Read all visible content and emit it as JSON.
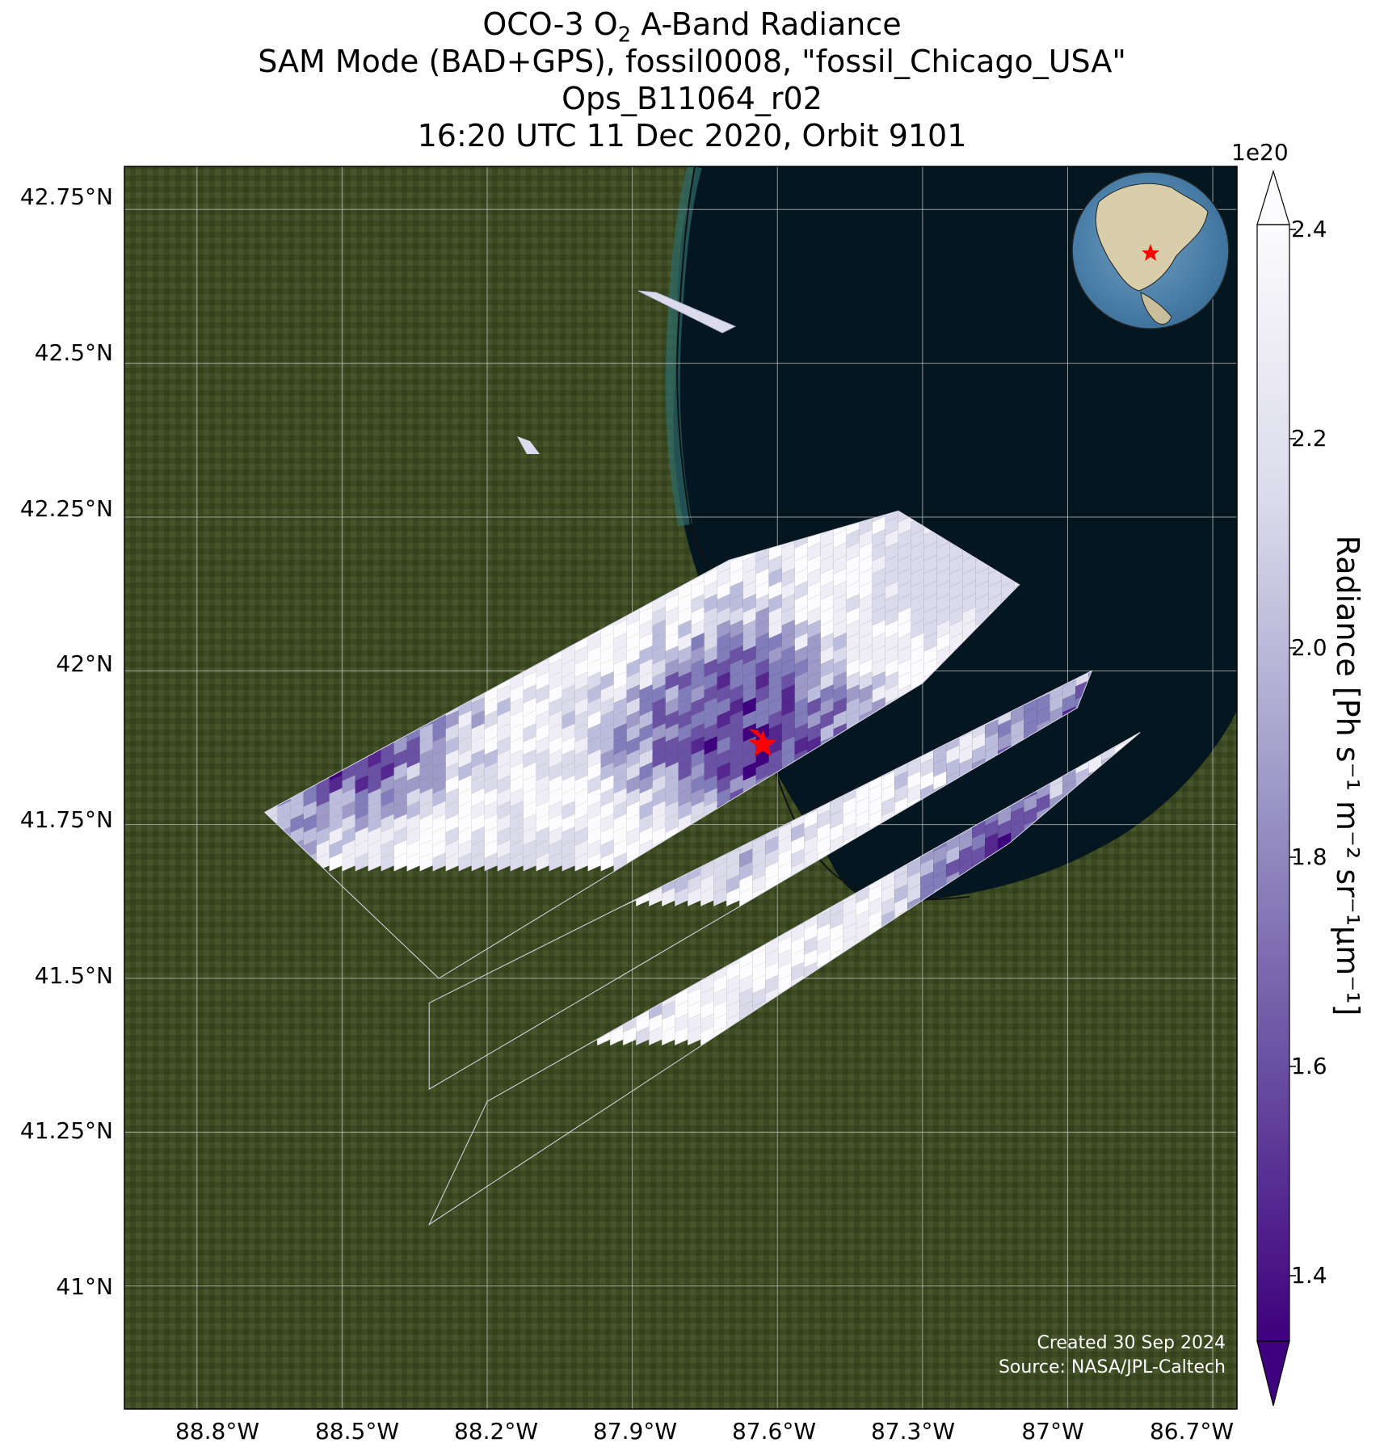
{
  "title": {
    "line1_prefix": "OCO-3 O",
    "line1_sub": "2",
    "line1_suffix": " A-Band Radiance",
    "line2": "SAM Mode (BAD+GPS), fossil0008, \"fossil_Chicago_USA\"",
    "line3": "Ops_B11064_r02",
    "line4": "16:20 UTC 11 Dec 2020, Orbit 9101"
  },
  "axes": {
    "lat_ticks": [
      "42.75°N",
      "42.5°N",
      "42.25°N",
      "42°N",
      "41.75°N",
      "41.5°N",
      "41.25°N",
      "41°N"
    ],
    "lon_ticks": [
      "88.8°W",
      "88.5°W",
      "88.2°W",
      "87.9°W",
      "87.6°W",
      "87.3°W",
      "87°W",
      "86.7°W"
    ]
  },
  "colorbar": {
    "exponent": "1e20",
    "ticks": [
      "2.4",
      "2.2",
      "2.0",
      "1.8",
      "1.6",
      "1.4"
    ],
    "label": "Radiance [Ph s⁻¹ m⁻² sr⁻¹μm⁻¹]",
    "colormap": "Purples_r",
    "low_color": "#3f007d",
    "high_color": "#fcfbfd",
    "extend": "both"
  },
  "credits": {
    "created": "Created 30 Sep 2024",
    "source": "Source: NASA/JPL-Caltech"
  },
  "map": {
    "background": "satellite imagery",
    "water_color": "#04161f",
    "land_color": "#3d4a22",
    "target_marker": "red star",
    "target_lon": -87.63,
    "target_lat": 41.88,
    "inset": "globe centered on North America with red star"
  },
  "chart_data": {
    "type": "heatmap",
    "variable": "Radiance",
    "units": "Ph s-1 m-2 sr-1 μm-1",
    "xlim": [
      -88.95,
      -86.65
    ],
    "ylim": [
      40.8,
      42.82
    ],
    "clim": [
      1.32e+20,
      2.42e+20
    ],
    "swaths": [
      {
        "corners": [
          [
            -88.66,
            41.77
          ],
          [
            -87.7,
            42.18
          ],
          [
            -87.35,
            42.26
          ],
          [
            -87.1,
            42.14
          ],
          [
            -87.3,
            41.98
          ],
          [
            -88.3,
            41.5
          ]
        ]
      },
      {
        "corners": [
          [
            -88.32,
            41.46
          ],
          [
            -86.95,
            42.0
          ],
          [
            -86.98,
            41.94
          ],
          [
            -88.32,
            41.32
          ]
        ]
      },
      {
        "corners": [
          [
            -88.2,
            41.3
          ],
          [
            -86.85,
            41.9
          ],
          [
            -87.12,
            41.72
          ],
          [
            -88.32,
            41.1
          ]
        ]
      }
    ]
  }
}
